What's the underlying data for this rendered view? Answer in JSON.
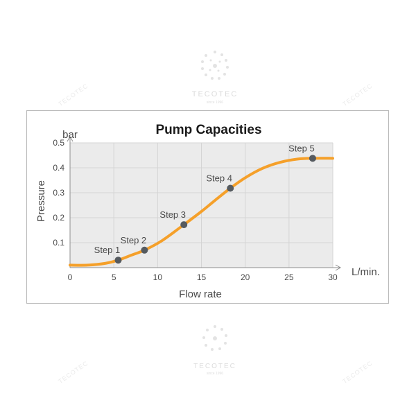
{
  "chart_data": {
    "type": "line",
    "title": "Pump Capacities",
    "xlabel": "Flow rate",
    "ylabel": "Pressure",
    "x_unit": "L/min.",
    "y_unit": "bar",
    "xlim": [
      0,
      30
    ],
    "ylim": [
      0,
      0.5
    ],
    "x_ticks": [
      "0",
      "5",
      "10",
      "15",
      "20",
      "25",
      "30"
    ],
    "y_ticks": [
      "0.1",
      "0.2",
      "0.3",
      "0.4",
      "0.5"
    ],
    "grid": true,
    "series": [
      {
        "curve": [
          [
            0,
            0.01
          ],
          [
            2,
            0.01
          ],
          [
            4,
            0.017
          ],
          [
            5.5,
            0.03
          ],
          [
            7,
            0.05
          ],
          [
            8.5,
            0.07
          ],
          [
            10.5,
            0.108
          ],
          [
            13,
            0.172
          ],
          [
            15,
            0.225
          ],
          [
            16.5,
            0.268
          ],
          [
            18.3,
            0.318
          ],
          [
            20,
            0.36
          ],
          [
            22,
            0.398
          ],
          [
            24,
            0.422
          ],
          [
            26,
            0.435
          ],
          [
            27.7,
            0.438
          ],
          [
            30,
            0.438
          ]
        ]
      }
    ],
    "points": [
      {
        "label": "Step 1",
        "x": 5.5,
        "y": 0.03
      },
      {
        "label": "Step 2",
        "x": 8.5,
        "y": 0.07
      },
      {
        "label": "Step 3",
        "x": 13,
        "y": 0.172
      },
      {
        "label": "Step 4",
        "x": 18.3,
        "y": 0.318
      },
      {
        "label": "Step 5",
        "x": 27.7,
        "y": 0.438
      }
    ],
    "colors": {
      "curve": "#f5a02a",
      "marker": "#555a5f",
      "plot_bg": "#ebebeb",
      "grid": "#d4d4d4"
    }
  },
  "watermark": {
    "brand": "TECOTEC",
    "tagline": "since 1996",
    "repeat_text": "TECOTEC"
  }
}
